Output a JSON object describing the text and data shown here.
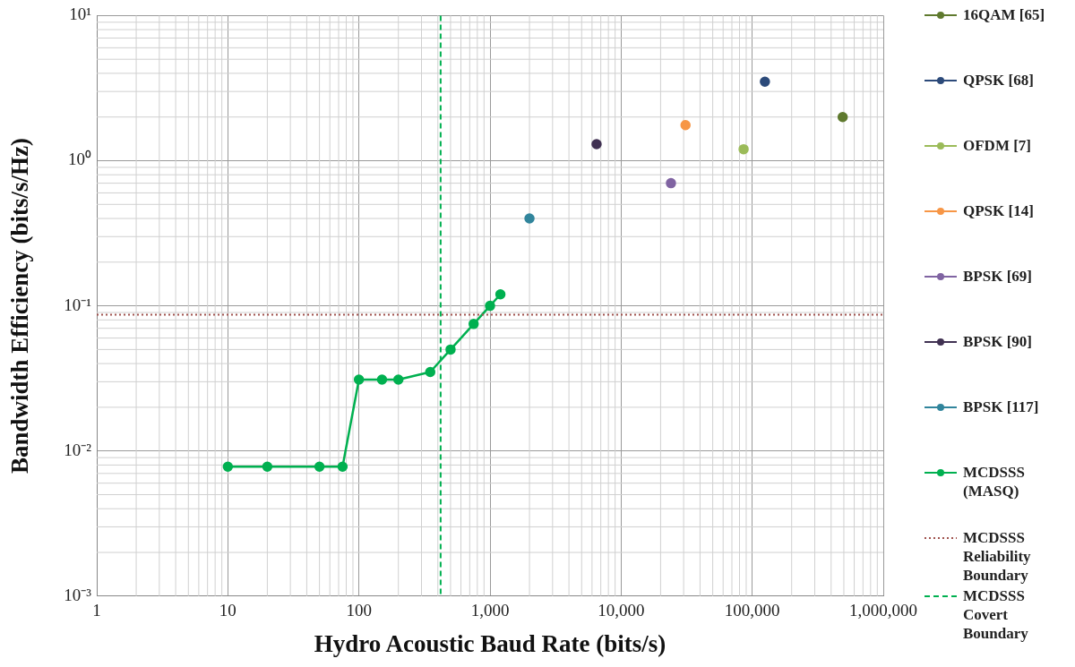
{
  "chart_data": {
    "type": "scatter",
    "xlabel": "Hydro Acoustic Baud Rate (bits/s)",
    "ylabel": "Bandwidth Efficiency (bits/s/Hz)",
    "log": "xy",
    "grid": true,
    "legend": "right",
    "marker": "circle",
    "xlim": [
      1,
      1000000
    ],
    "xticks": [
      1,
      10,
      100,
      {
        "value": 1000,
        "label": "1,000"
      },
      {
        "value": 10000,
        "label": "10,000"
      },
      {
        "value": 100000,
        "label": "100,000"
      },
      {
        "value": 1000000,
        "label": "1,000,000"
      }
    ],
    "ylim": [
      0.001,
      10
    ],
    "yticks": [
      {
        "value": 0.001,
        "label": "10⁻³"
      },
      {
        "value": 0.01,
        "label": "10⁻²"
      },
      {
        "value": 0.1,
        "label": "10⁻¹"
      },
      {
        "value": 1,
        "label": "10⁰"
      },
      {
        "value": 10,
        "label": "10¹"
      }
    ],
    "series": [
      {
        "name": "16QAM [65]",
        "type": "scatter",
        "color": "#5f7a2e",
        "x": [
          490000
        ],
        "values": [
          2.0
        ]
      },
      {
        "name": "QPSK [68]",
        "type": "scatter",
        "color": "#2c4a7a",
        "x": [
          125000
        ],
        "values": [
          3.5
        ]
      },
      {
        "name": "OFDM [7]",
        "type": "scatter",
        "color": "#9bbb59",
        "x": [
          86000
        ],
        "values": [
          1.2
        ]
      },
      {
        "name": "QPSK [14]",
        "type": "scatter",
        "color": "#f79646",
        "x": [
          31000
        ],
        "values": [
          1.76
        ]
      },
      {
        "name": "BPSK [69]",
        "type": "scatter",
        "color": "#8064a2",
        "x": [
          24000
        ],
        "values": [
          0.7
        ]
      },
      {
        "name": "BPSK [90]",
        "type": "scatter",
        "color": "#403152",
        "x": [
          6500
        ],
        "values": [
          1.3
        ]
      },
      {
        "name": "BPSK [117]",
        "type": "scatter",
        "color": "#31859c",
        "x": [
          2000
        ],
        "values": [
          0.4
        ]
      },
      {
        "name": "MCDSSS (MASQ)",
        "type": "line",
        "color": "#00b050",
        "x": [
          10,
          20,
          50,
          75,
          100,
          150,
          200,
          350,
          500,
          750,
          1000,
          1200
        ],
        "values": [
          0.0078,
          0.0078,
          0.0078,
          0.0078,
          0.031,
          0.031,
          0.031,
          0.035,
          0.05,
          0.075,
          0.1,
          0.12
        ]
      }
    ],
    "ref_lines": [
      {
        "axis": "y",
        "value": 0.087,
        "label": "MCDSSS Reliability Boundary",
        "color": "#a0524e",
        "line_style": "dotted"
      },
      {
        "axis": "x",
        "value": 420,
        "label": "MCDSSS Covert Boundary",
        "color": "#00b050",
        "line_style": "dashed"
      }
    ]
  }
}
